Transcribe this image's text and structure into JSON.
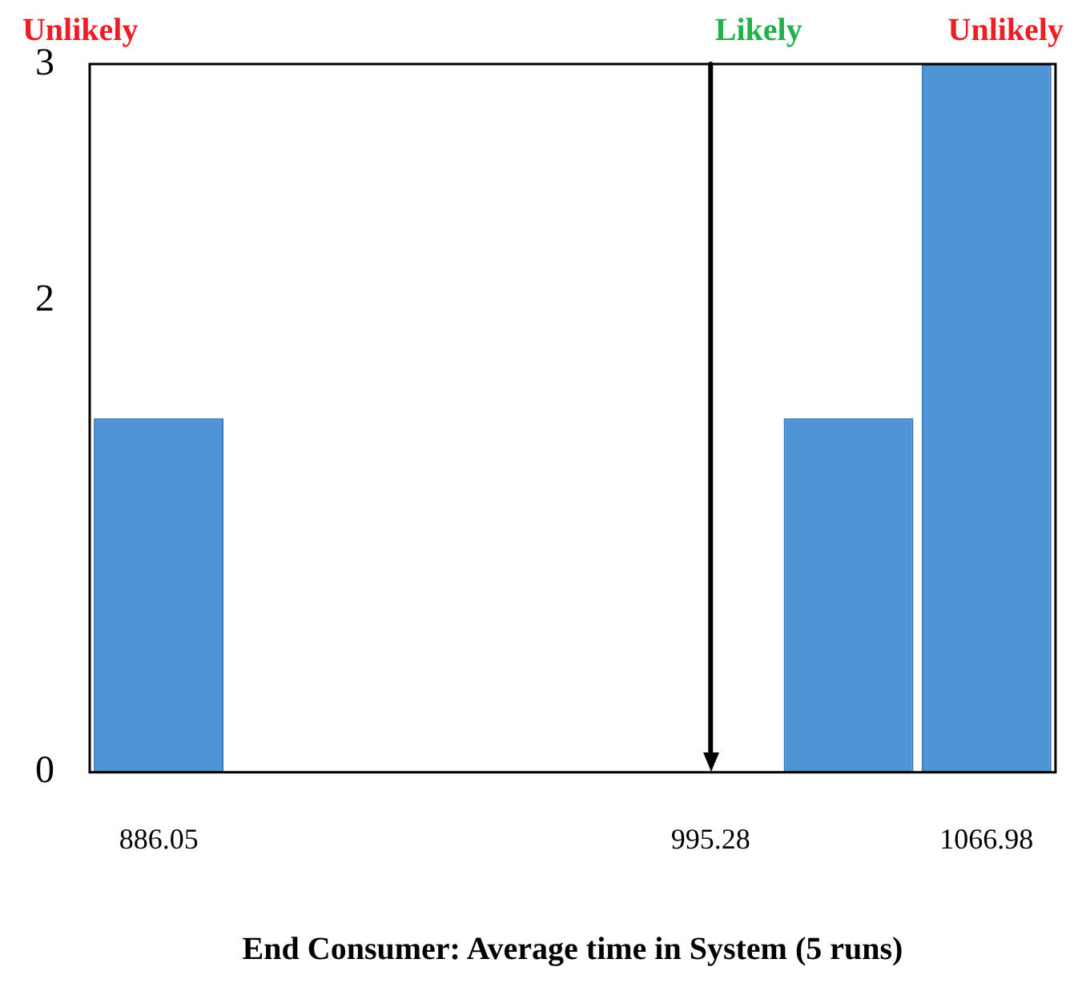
{
  "chart_data": {
    "type": "bar",
    "xlabel": "End Consumer: Average time in System (5 runs)",
    "categories": [
      "886.05",
      null,
      null,
      null,
      "995.28",
      null,
      "1066.98"
    ],
    "values": [
      1.5,
      null,
      null,
      null,
      null,
      1.5,
      3
    ],
    "color": "#4f94d4",
    "ylim": [
      0,
      3
    ],
    "yticks": [
      0,
      2,
      3
    ],
    "grid": false,
    "legend": false,
    "annotations": [
      "Unlikely",
      "Unlikely"
    ],
    "ref_lines": [
      {
        "axis": "x",
        "value": "995.28",
        "label": "Likely",
        "color": "#000000"
      }
    ]
  }
}
